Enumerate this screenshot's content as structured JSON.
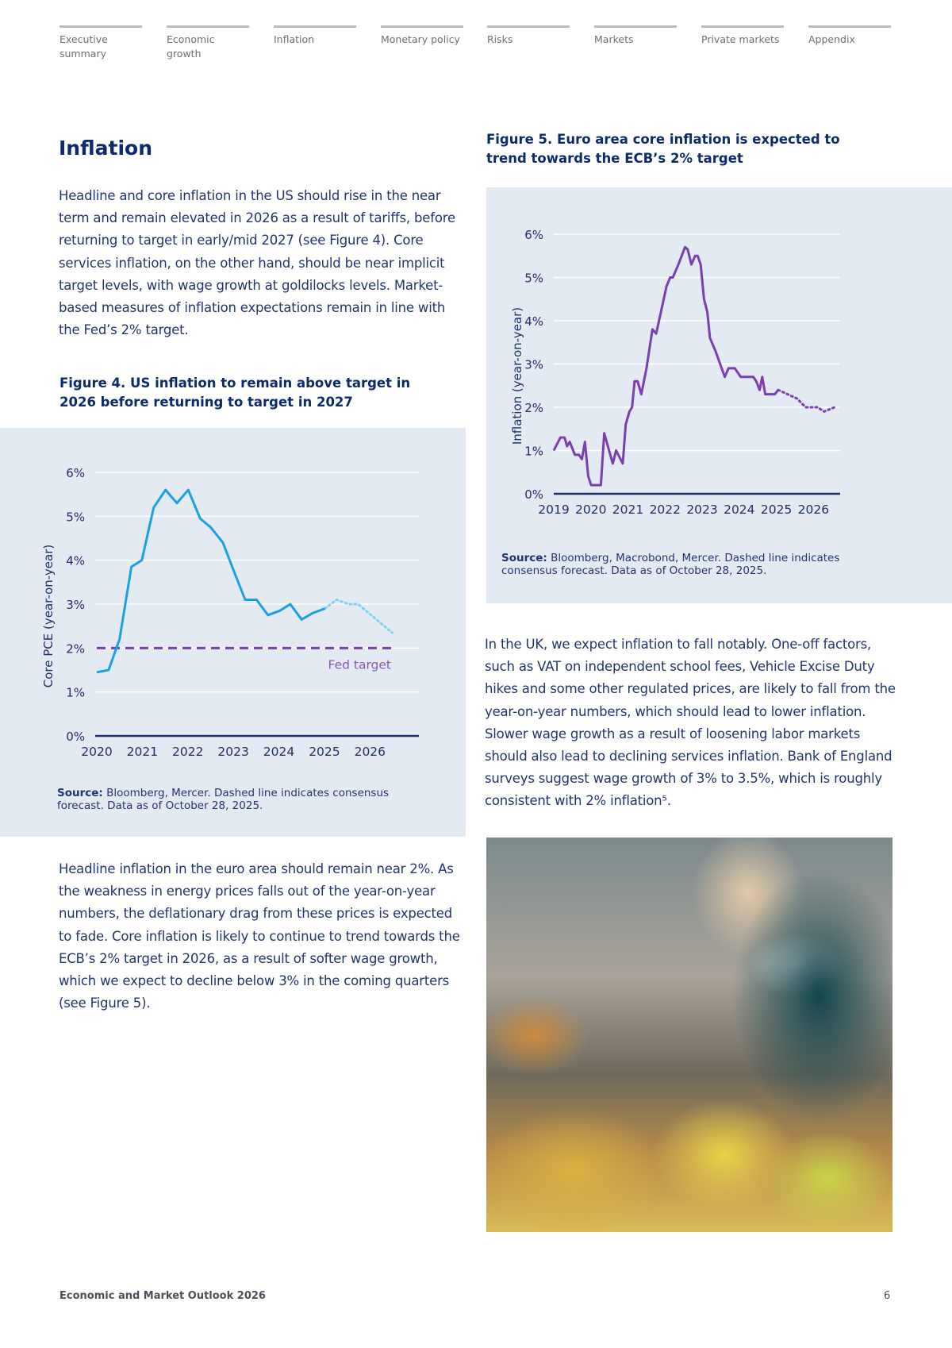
{
  "nav": {
    "items": [
      "Executive summary",
      "Economic growth",
      "Inflation",
      "Monetary policy",
      "Risks",
      "Markets",
      "Private markets",
      "Appendix"
    ]
  },
  "section_title": "Inflation",
  "paragraphs": {
    "us": "Headline and core inflation in the US should rise in the near term and remain elevated in 2026 as a result of tariffs, before returning to target in early/mid 2027 (see Figure 4). Core services inflation, on the other hand, should be near implicit target levels, with wage growth at goldilocks levels. Market-based measures of inflation expectations remain in line with the Fed’s 2% target.",
    "euro": "Headline inflation in the euro area should remain near 2%. As the weakness in energy prices falls out of the year-on-year numbers, the deflationary drag from these prices is expected to fade. Core inflation is likely to continue to trend towards the ECB’s 2% target in 2026, as a result of softer wage growth, which we expect to decline below 3% in the coming quarters (see Figure 5).",
    "uk": "In the UK, we expect inflation to fall notably. One-off factors, such as VAT on independent school fees, Vehicle Excise Duty hikes and some other regulated prices, are likely to fall from the year-on-year numbers, which should lead to lower inflation. Slower wage growth as a result of loosening labor markets should also lead to declining services inflation. Bank of England surveys suggest wage growth of 3% to 3.5%, which is roughly consistent with 2% inflation⁵."
  },
  "figure4": {
    "caption": "Figure 4. US inflation to remain above target in 2026 before returning to target in 2027",
    "source_label": "Source:",
    "source_text": "Bloomberg, Mercer. Dashed line indicates consensus forecast. Data as of October 28, 2025."
  },
  "figure5": {
    "caption": "Figure 5. Euro area core inflation is expected to trend towards the ECB’s 2% target",
    "source_label": "Source:",
    "source_text": "Bloomberg, Macrobond, Mercer. Dashed line indicates consensus forecast. Data as of October 28, 2025."
  },
  "chart_data": [
    {
      "type": "line",
      "ylabel": "Core PCE (year-on-year)",
      "ylim": [
        0,
        6
      ],
      "yticks": [
        "0%",
        "1%",
        "2%",
        "3%",
        "4%",
        "5%",
        "6%"
      ],
      "xticks": [
        "2020",
        "2021",
        "2022",
        "2023",
        "2024",
        "2025",
        "2026"
      ],
      "xlim": [
        2020,
        2026.5
      ],
      "grid": true,
      "colors": {
        "actual": "#1ba1e2",
        "forecast": "#7fd0f2",
        "target": "#7b3fb0"
      },
      "actual": {
        "x": [
          2020.0,
          2020.26,
          2020.5,
          2020.76,
          2020.99,
          2021.25,
          2021.51,
          2021.76,
          2022.01,
          2022.27,
          2022.5,
          2022.77,
          2023.03,
          2023.26,
          2023.51,
          2023.76,
          2024.02,
          2024.25,
          2024.5,
          2024.75,
          2025.01
        ],
        "y": [
          1.45,
          1.5,
          2.2,
          3.85,
          4.0,
          5.2,
          5.6,
          5.3,
          5.6,
          4.95,
          4.75,
          4.4,
          3.7,
          3.1,
          3.1,
          2.75,
          2.85,
          3.0,
          2.65,
          2.8,
          2.9
        ]
      },
      "forecast": {
        "x": [
          2025.01,
          2025.27,
          2025.53,
          2025.74,
          2025.97,
          2026.49
        ],
        "y": [
          2.9,
          3.1,
          3.0,
          3.0,
          2.8,
          2.35
        ]
      },
      "target": {
        "value": 2,
        "label": "Fed target"
      }
    },
    {
      "type": "line",
      "ylabel": "Inflation (year-on-year)",
      "ylim": [
        0,
        6
      ],
      "yticks": [
        "0%",
        "1%",
        "2%",
        "3%",
        "4%",
        "5%",
        "6%"
      ],
      "xticks": [
        "2019",
        "2020",
        "2021",
        "2022",
        "2023",
        "2024",
        "2025",
        "2026"
      ],
      "xlim": [
        2019,
        2026.57
      ],
      "grid": true,
      "colors": {
        "actual": "#7b3fb0",
        "forecast": "#7b3fb0"
      },
      "actual": {
        "x": [
          2019.0,
          2019.18,
          2019.29,
          2019.36,
          2019.43,
          2019.57,
          2019.68,
          2019.76,
          2019.84,
          2019.93,
          2020.01,
          2020.27,
          2020.36,
          2020.59,
          2020.68,
          2020.86,
          2020.94,
          2021.04,
          2021.11,
          2021.18,
          2021.26,
          2021.36,
          2021.5,
          2021.66,
          2021.76,
          2021.89,
          2022.04,
          2022.14,
          2022.21,
          2022.36,
          2022.54,
          2022.61,
          2022.71,
          2022.81,
          2022.88,
          2022.96,
          2023.05,
          2023.14,
          2023.21,
          2023.36,
          2023.61,
          2023.71,
          2023.88,
          2024.04,
          2024.38,
          2024.46,
          2024.55,
          2024.62,
          2024.7,
          2024.96,
          2025.05
        ],
        "y": [
          1.0,
          1.3,
          1.3,
          1.1,
          1.2,
          0.9,
          0.9,
          0.8,
          1.2,
          0.4,
          0.2,
          0.2,
          1.4,
          0.7,
          1.0,
          0.7,
          1.6,
          1.9,
          2.0,
          2.6,
          2.6,
          2.3,
          2.9,
          3.8,
          3.7,
          4.2,
          4.8,
          5.0,
          5.0,
          5.3,
          5.7,
          5.65,
          5.3,
          5.5,
          5.5,
          5.3,
          4.5,
          4.2,
          3.6,
          3.3,
          2.7,
          2.9,
          2.9,
          2.7,
          2.7,
          2.6,
          2.4,
          2.7,
          2.3,
          2.3,
          2.4
        ]
      },
      "forecast": {
        "x": [
          2025.05,
          2025.56,
          2025.79,
          2026.11,
          2026.29,
          2026.57
        ],
        "y": [
          2.4,
          2.2,
          2.0,
          2.0,
          1.9,
          2.0
        ]
      }
    }
  ],
  "footer": {
    "title": "Economic and Market Outlook 2026",
    "page": "6"
  }
}
